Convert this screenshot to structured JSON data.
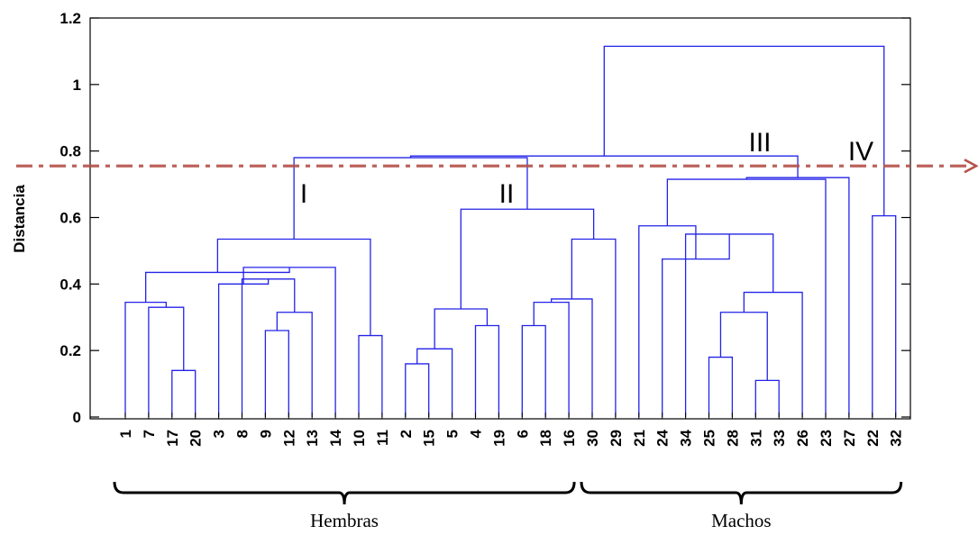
{
  "chart_data": {
    "type": "dendrogram",
    "ylabel": "Distancia",
    "ylim": [
      0,
      1.2
    ],
    "yticks": [
      "0",
      "0.2",
      "0.4",
      "0.6",
      "0.8",
      "1",
      "1.2"
    ],
    "leaves": [
      "1",
      "7",
      "17",
      "20",
      "3",
      "8",
      "9",
      "12",
      "13",
      "14",
      "10",
      "11",
      "2",
      "15",
      "5",
      "4",
      "19",
      "6",
      "18",
      "16",
      "30",
      "29",
      "21",
      "24",
      "34",
      "25",
      "28",
      "31",
      "33",
      "26",
      "23",
      "27",
      "22",
      "32"
    ],
    "merges": [
      {
        "left": "17",
        "right": "20",
        "height": 0.14
      },
      {
        "left": "7",
        "right": "c1",
        "height": 0.33
      },
      {
        "left": "1",
        "right": "c2",
        "height": 0.345
      },
      {
        "left": "9",
        "right": "12",
        "height": 0.26
      },
      {
        "left": "13",
        "right": "c4",
        "height": 0.315
      },
      {
        "left": "8",
        "right": "c5",
        "height": 0.415
      },
      {
        "left": "3",
        "right": "c6",
        "height": 0.4
      },
      {
        "left": "c7",
        "right": "14",
        "height": 0.45
      },
      {
        "left": "c3",
        "right": "c8",
        "height": 0.435
      },
      {
        "left": "10",
        "right": "11",
        "height": 0.245
      },
      {
        "left": "c9",
        "right": "c10",
        "height": 0.535
      },
      {
        "left": "2",
        "right": "15",
        "height": 0.16
      },
      {
        "left": "c12",
        "right": "5",
        "height": 0.205
      },
      {
        "left": "4",
        "right": "19",
        "height": 0.275
      },
      {
        "left": "c13",
        "right": "c14",
        "height": 0.325
      },
      {
        "left": "6",
        "right": "18",
        "height": 0.275
      },
      {
        "left": "c16",
        "right": "16",
        "height": 0.345
      },
      {
        "left": "c17",
        "right": "30",
        "height": 0.355
      },
      {
        "left": "c18",
        "right": "29",
        "height": 0.535
      },
      {
        "left": "c15",
        "right": "c19",
        "height": 0.625
      },
      {
        "left": "c11",
        "right": "c20",
        "height": 0.78
      },
      {
        "left": "25",
        "right": "28",
        "height": 0.18
      },
      {
        "left": "31",
        "right": "33",
        "height": 0.11
      },
      {
        "left": "c22",
        "right": "c23",
        "height": 0.315
      },
      {
        "left": "c24",
        "right": "26",
        "height": 0.375
      },
      {
        "left": "34",
        "right": "c25",
        "height": 0.55
      },
      {
        "left": "24",
        "right": "c26",
        "height": 0.475
      },
      {
        "left": "21",
        "right": "c27",
        "height": 0.575
      },
      {
        "left": "c28",
        "right": "23",
        "height": 0.715
      },
      {
        "left": "c29",
        "right": "27",
        "height": 0.72
      },
      {
        "left": "c21",
        "right": "c30",
        "height": 0.785
      },
      {
        "left": "22",
        "right": "32",
        "height": 0.605
      },
      {
        "left": "c31",
        "right": "c32",
        "height": 1.115
      }
    ],
    "cut_line": {
      "y": 0.755,
      "color": "#b5524a"
    },
    "cluster_labels": [
      "I",
      "II",
      "III",
      "IV"
    ],
    "groups": [
      {
        "label": "Hembras",
        "from_leaf": "1",
        "to_leaf": "16"
      },
      {
        "label": "Machos",
        "from_leaf": "30",
        "to_leaf": "32"
      }
    ],
    "colors": {
      "tree": "#2323e8",
      "axes": "#000000",
      "cut_line": "#b5524a"
    },
    "grid": false
  }
}
